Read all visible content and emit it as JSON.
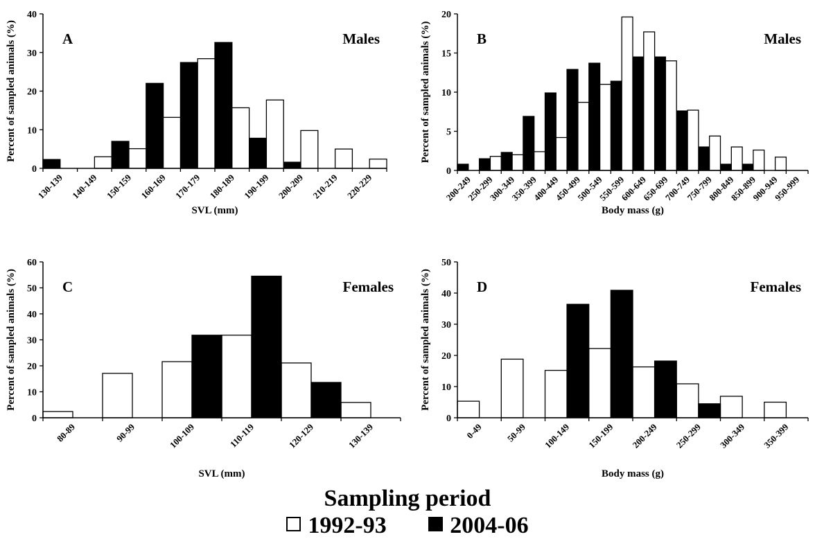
{
  "legend": {
    "title": "Sampling period",
    "items": [
      {
        "label": "1992-93",
        "fill": "#ffffff"
      },
      {
        "label": "2004-06",
        "fill": "#000000"
      }
    ]
  },
  "chart_data": [
    {
      "type": "bar",
      "panel_label": "A",
      "title": "Males",
      "xlabel": "SVL (mm)",
      "ylabel": "Percent of sampled animals (%)",
      "ylim": [
        0,
        40
      ],
      "yticks": [
        0,
        10,
        20,
        30,
        40
      ],
      "categories": [
        "130-139",
        "140-149",
        "150-159",
        "160-169",
        "170-179",
        "180-189",
        "190-199",
        "200-209",
        "210-219",
        "220-229"
      ],
      "series": [
        {
          "name": "2004-06",
          "fill": "#000000",
          "values": [
            2.3,
            0,
            7.0,
            22.0,
            27.4,
            32.6,
            7.8,
            1.6,
            0,
            0
          ]
        },
        {
          "name": "1992-93",
          "fill": "#ffffff",
          "values": [
            0,
            3.0,
            5.1,
            13.2,
            28.4,
            15.7,
            17.7,
            9.8,
            5.0,
            2.4
          ]
        }
      ]
    },
    {
      "type": "bar",
      "panel_label": "B",
      "title": "Males",
      "xlabel": "Body mass (g)",
      "ylabel": "Percent of sampled animals (%)",
      "ylim": [
        0,
        20
      ],
      "yticks": [
        0,
        5,
        10,
        15,
        20
      ],
      "categories": [
        "200-249",
        "250-299",
        "300-349",
        "350-399",
        "400-449",
        "450-499",
        "500-549",
        "550-599",
        "600-649",
        "650-699",
        "700-749",
        "750-799",
        "800-849",
        "850-899",
        "900-949",
        "950-999"
      ],
      "series": [
        {
          "name": "2004-06",
          "fill": "#000000",
          "values": [
            0.8,
            1.5,
            2.3,
            6.9,
            9.9,
            12.9,
            13.7,
            11.4,
            14.5,
            14.5,
            7.6,
            3.0,
            0.8,
            0.8,
            0,
            0
          ]
        },
        {
          "name": "1992-93",
          "fill": "#ffffff",
          "values": [
            0,
            1.8,
            2.0,
            2.4,
            4.2,
            8.7,
            11.0,
            19.6,
            17.7,
            14.0,
            7.7,
            4.4,
            3.0,
            2.6,
            1.7,
            0
          ]
        }
      ]
    },
    {
      "type": "bar",
      "panel_label": "C",
      "title": "Females",
      "xlabel": "SVL (mm)",
      "ylabel": "Percent of sampled animals (%)",
      "ylim": [
        0,
        60
      ],
      "yticks": [
        0,
        10,
        20,
        30,
        40,
        50,
        60
      ],
      "categories": [
        "80-89",
        "90-99",
        "100-109",
        "110-119",
        "120-129",
        "130-139"
      ],
      "series": [
        {
          "name": "1992-93",
          "fill": "#ffffff",
          "values": [
            2.4,
            17.1,
            21.6,
            31.8,
            21.1,
            5.9
          ]
        },
        {
          "name": "2004-06",
          "fill": "#000000",
          "values": [
            0,
            0,
            31.8,
            54.5,
            13.6,
            0
          ]
        }
      ]
    },
    {
      "type": "bar",
      "panel_label": "D",
      "title": "Females",
      "xlabel": "Body mass (g)",
      "ylabel": "Percent of sampled animals (%)",
      "ylim": [
        0,
        50
      ],
      "yticks": [
        0,
        10,
        20,
        30,
        40,
        50
      ],
      "categories": [
        "0-49",
        "50-99",
        "100-149",
        "150-199",
        "200-249",
        "250-299",
        "300-349",
        "350-399"
      ],
      "series": [
        {
          "name": "1992-93",
          "fill": "#ffffff",
          "values": [
            5.3,
            18.8,
            15.2,
            22.2,
            16.3,
            10.9,
            6.9,
            5.0
          ]
        },
        {
          "name": "2004-06",
          "fill": "#000000",
          "values": [
            0,
            0,
            36.4,
            40.9,
            18.2,
            4.5,
            0,
            0
          ]
        }
      ]
    }
  ]
}
